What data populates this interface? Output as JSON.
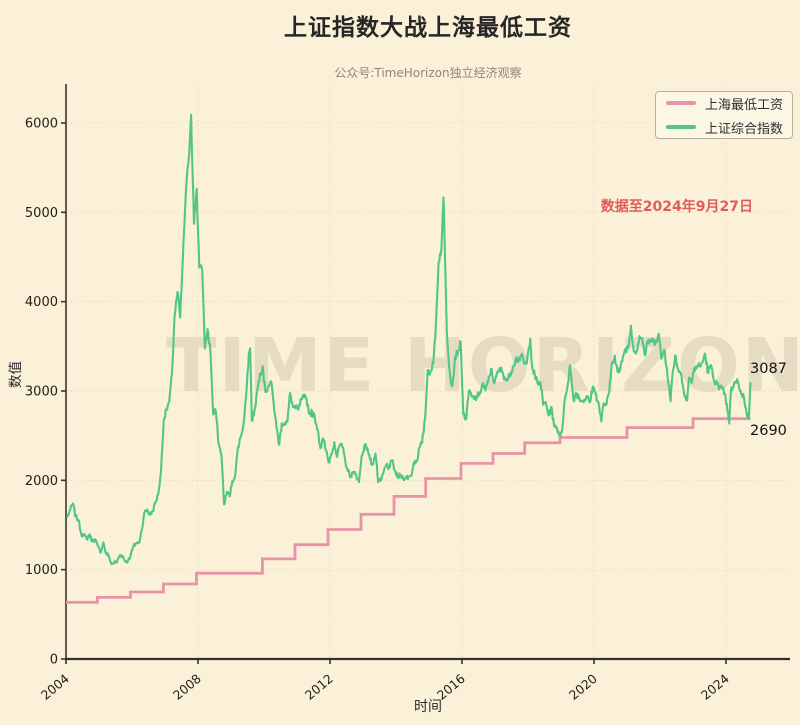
{
  "page": {
    "background": "#faf1d8"
  },
  "header": {
    "title": "上证指数大战上海最低工资",
    "subtitle": "公众号:TimeHorizon独立经济观察"
  },
  "watermark": "TIME HORIZON",
  "annotation": {
    "text": "数据至2024年9月27日",
    "color": "#e05c5c"
  },
  "end_labels": {
    "sse": "3087",
    "wage": "2690"
  },
  "legend": {
    "items": [
      {
        "label": "上海最低工资",
        "color": "#e794a8"
      },
      {
        "label": "上证综合指数",
        "color": "#52c785"
      }
    ]
  },
  "axes": {
    "xlabel": "时间",
    "ylabel": "数值",
    "x_ticks": [
      "2004",
      "2008",
      "2012",
      "2016",
      "2020",
      "2024"
    ],
    "y_ticks": [
      "0",
      "1000",
      "2000",
      "3000",
      "4000",
      "5000",
      "6000"
    ]
  },
  "chart_data": {
    "type": "line",
    "title": "上证指数大战上海最低工资",
    "xlabel": "时间",
    "ylabel": "数值",
    "xlim": [
      2004,
      2025.9
    ],
    "ylim": [
      0,
      6425
    ],
    "grid": "dotted",
    "legend_position": "upper right",
    "last_date": "2024-09-27",
    "series": [
      {
        "name": "上海最低工资",
        "color": "#e794a8",
        "style": "step",
        "final_value": 2690,
        "points": [
          [
            2004.0,
            635
          ],
          [
            2004.95,
            690
          ],
          [
            2005.95,
            750
          ],
          [
            2006.95,
            840
          ],
          [
            2007.95,
            960
          ],
          [
            2009.95,
            1120
          ],
          [
            2010.94,
            1280
          ],
          [
            2011.94,
            1450
          ],
          [
            2012.94,
            1620
          ],
          [
            2013.94,
            1820
          ],
          [
            2014.9,
            2020
          ],
          [
            2015.97,
            2190
          ],
          [
            2016.94,
            2300
          ],
          [
            2017.9,
            2420
          ],
          [
            2018.97,
            2480
          ],
          [
            2021.0,
            2590
          ],
          [
            2023.0,
            2690
          ]
        ],
        "end_x": 2024.74
      },
      {
        "name": "上证综合指数",
        "color": "#52c785",
        "style": "line",
        "final_value": 3087,
        "points": [
          [
            2004.04,
            1590
          ],
          [
            2004.13,
            1675
          ],
          [
            2004.21,
            1741
          ],
          [
            2004.29,
            1595
          ],
          [
            2004.38,
            1555
          ],
          [
            2004.46,
            1400
          ],
          [
            2004.54,
            1386
          ],
          [
            2004.63,
            1342
          ],
          [
            2004.71,
            1396
          ],
          [
            2004.79,
            1320
          ],
          [
            2004.88,
            1340
          ],
          [
            2004.96,
            1266
          ],
          [
            2005.04,
            1191
          ],
          [
            2005.13,
            1306
          ],
          [
            2005.21,
            1181
          ],
          [
            2005.29,
            1159
          ],
          [
            2005.38,
            1060
          ],
          [
            2005.46,
            1081
          ],
          [
            2005.54,
            1083
          ],
          [
            2005.63,
            1162
          ],
          [
            2005.71,
            1155
          ],
          [
            2005.79,
            1092
          ],
          [
            2005.88,
            1099
          ],
          [
            2005.96,
            1161
          ],
          [
            2006.04,
            1258
          ],
          [
            2006.13,
            1299
          ],
          [
            2006.21,
            1298
          ],
          [
            2006.29,
            1440
          ],
          [
            2006.38,
            1641
          ],
          [
            2006.46,
            1672
          ],
          [
            2006.54,
            1612
          ],
          [
            2006.63,
            1658
          ],
          [
            2006.71,
            1752
          ],
          [
            2006.79,
            1837
          ],
          [
            2006.88,
            2099
          ],
          [
            2006.96,
            2675
          ],
          [
            2007.04,
            2786
          ],
          [
            2007.13,
            2881
          ],
          [
            2007.21,
            3183
          ],
          [
            2007.29,
            3841
          ],
          [
            2007.38,
            4109
          ],
          [
            2007.46,
            3820
          ],
          [
            2007.54,
            4471
          ],
          [
            2007.63,
            5218
          ],
          [
            2007.71,
            5552
          ],
          [
            2007.79,
            6092
          ],
          [
            2007.88,
            4872
          ],
          [
            2007.96,
            5262
          ],
          [
            2008.04,
            4383
          ],
          [
            2008.13,
            4348
          ],
          [
            2008.21,
            3473
          ],
          [
            2008.29,
            3693
          ],
          [
            2008.38,
            3433
          ],
          [
            2008.46,
            2736
          ],
          [
            2008.54,
            2776
          ],
          [
            2008.63,
            2397
          ],
          [
            2008.71,
            2294
          ],
          [
            2008.79,
            1729
          ],
          [
            2008.88,
            1871
          ],
          [
            2008.96,
            1821
          ],
          [
            2009.04,
            1991
          ],
          [
            2009.13,
            2063
          ],
          [
            2009.21,
            2373
          ],
          [
            2009.29,
            2477
          ],
          [
            2009.38,
            2632
          ],
          [
            2009.46,
            2959
          ],
          [
            2009.54,
            3412
          ],
          [
            2009.58,
            3478
          ],
          [
            2009.63,
            2668
          ],
          [
            2009.71,
            2779
          ],
          [
            2009.79,
            2995
          ],
          [
            2009.88,
            3195
          ],
          [
            2009.96,
            3277
          ],
          [
            2010.04,
            2989
          ],
          [
            2010.13,
            3052
          ],
          [
            2010.21,
            3109
          ],
          [
            2010.29,
            2871
          ],
          [
            2010.38,
            2592
          ],
          [
            2010.46,
            2398
          ],
          [
            2010.54,
            2638
          ],
          [
            2010.63,
            2639
          ],
          [
            2010.71,
            2656
          ],
          [
            2010.79,
            2979
          ],
          [
            2010.88,
            2820
          ],
          [
            2010.96,
            2808
          ],
          [
            2011.04,
            2790
          ],
          [
            2011.13,
            2905
          ],
          [
            2011.21,
            2928
          ],
          [
            2011.29,
            2911
          ],
          [
            2011.38,
            2743
          ],
          [
            2011.46,
            2762
          ],
          [
            2011.54,
            2701
          ],
          [
            2011.63,
            2567
          ],
          [
            2011.71,
            2359
          ],
          [
            2011.79,
            2468
          ],
          [
            2011.88,
            2333
          ],
          [
            2011.96,
            2199
          ],
          [
            2012.04,
            2293
          ],
          [
            2012.13,
            2428
          ],
          [
            2012.21,
            2262
          ],
          [
            2012.29,
            2396
          ],
          [
            2012.38,
            2372
          ],
          [
            2012.46,
            2225
          ],
          [
            2012.54,
            2103
          ],
          [
            2012.63,
            2047
          ],
          [
            2012.71,
            2086
          ],
          [
            2012.79,
            2068
          ],
          [
            2012.88,
            1980
          ],
          [
            2012.96,
            2269
          ],
          [
            2013.04,
            2385
          ],
          [
            2013.13,
            2365
          ],
          [
            2013.21,
            2237
          ],
          [
            2013.29,
            2177
          ],
          [
            2013.38,
            2301
          ],
          [
            2013.46,
            1979
          ],
          [
            2013.54,
            1994
          ],
          [
            2013.63,
            2098
          ],
          [
            2013.71,
            2175
          ],
          [
            2013.79,
            2141
          ],
          [
            2013.88,
            2220
          ],
          [
            2013.96,
            2116
          ],
          [
            2014.04,
            2033
          ],
          [
            2014.13,
            2056
          ],
          [
            2014.21,
            2033
          ],
          [
            2014.29,
            2026
          ],
          [
            2014.38,
            2039
          ],
          [
            2014.46,
            2048
          ],
          [
            2014.54,
            2201
          ],
          [
            2014.63,
            2217
          ],
          [
            2014.71,
            2364
          ],
          [
            2014.79,
            2420
          ],
          [
            2014.88,
            2683
          ],
          [
            2014.96,
            3235
          ],
          [
            2015.04,
            3210
          ],
          [
            2015.13,
            3310
          ],
          [
            2015.21,
            3748
          ],
          [
            2015.29,
            4442
          ],
          [
            2015.38,
            4612
          ],
          [
            2015.44,
            5166
          ],
          [
            2015.5,
            4277
          ],
          [
            2015.54,
            3664
          ],
          [
            2015.63,
            3206
          ],
          [
            2015.71,
            3053
          ],
          [
            2015.79,
            3383
          ],
          [
            2015.88,
            3445
          ],
          [
            2015.96,
            3539
          ],
          [
            2016.04,
            2738
          ],
          [
            2016.13,
            2688
          ],
          [
            2016.21,
            3004
          ],
          [
            2016.29,
            2938
          ],
          [
            2016.38,
            2917
          ],
          [
            2016.46,
            2930
          ],
          [
            2016.54,
            2979
          ],
          [
            2016.63,
            3085
          ],
          [
            2016.71,
            3005
          ],
          [
            2016.79,
            3100
          ],
          [
            2016.88,
            3250
          ],
          [
            2016.96,
            3104
          ],
          [
            2017.04,
            3159
          ],
          [
            2017.13,
            3242
          ],
          [
            2017.21,
            3223
          ],
          [
            2017.29,
            3155
          ],
          [
            2017.38,
            3117
          ],
          [
            2017.46,
            3192
          ],
          [
            2017.54,
            3273
          ],
          [
            2017.63,
            3361
          ],
          [
            2017.71,
            3349
          ],
          [
            2017.79,
            3393
          ],
          [
            2017.88,
            3317
          ],
          [
            2017.96,
            3307
          ],
          [
            2018.07,
            3587
          ],
          [
            2018.13,
            3259
          ],
          [
            2018.21,
            3169
          ],
          [
            2018.29,
            3082
          ],
          [
            2018.38,
            3095
          ],
          [
            2018.46,
            2847
          ],
          [
            2018.54,
            2876
          ],
          [
            2018.63,
            2725
          ],
          [
            2018.71,
            2821
          ],
          [
            2018.79,
            2603
          ],
          [
            2018.88,
            2588
          ],
          [
            2018.96,
            2494
          ],
          [
            2019.04,
            2585
          ],
          [
            2019.13,
            2941
          ],
          [
            2019.21,
            3091
          ],
          [
            2019.27,
            3288
          ],
          [
            2019.38,
            2899
          ],
          [
            2019.46,
            2979
          ],
          [
            2019.54,
            2933
          ],
          [
            2019.63,
            2886
          ],
          [
            2019.71,
            2905
          ],
          [
            2019.79,
            2929
          ],
          [
            2019.88,
            2872
          ],
          [
            2019.96,
            3050
          ],
          [
            2020.04,
            2977
          ],
          [
            2020.13,
            2880
          ],
          [
            2020.22,
            2660
          ],
          [
            2020.29,
            2860
          ],
          [
            2020.38,
            2852
          ],
          [
            2020.46,
            2985
          ],
          [
            2020.54,
            3310
          ],
          [
            2020.63,
            3396
          ],
          [
            2020.71,
            3218
          ],
          [
            2020.79,
            3225
          ],
          [
            2020.88,
            3392
          ],
          [
            2020.96,
            3473
          ],
          [
            2021.04,
            3483
          ],
          [
            2021.12,
            3731
          ],
          [
            2021.21,
            3442
          ],
          [
            2021.29,
            3447
          ],
          [
            2021.38,
            3615
          ],
          [
            2021.46,
            3591
          ],
          [
            2021.54,
            3397
          ],
          [
            2021.63,
            3544
          ],
          [
            2021.71,
            3568
          ],
          [
            2021.79,
            3547
          ],
          [
            2021.88,
            3564
          ],
          [
            2021.96,
            3640
          ],
          [
            2022.04,
            3361
          ],
          [
            2022.13,
            3462
          ],
          [
            2022.21,
            3252
          ],
          [
            2022.32,
            2886
          ],
          [
            2022.38,
            3186
          ],
          [
            2022.46,
            3399
          ],
          [
            2022.54,
            3253
          ],
          [
            2022.63,
            3202
          ],
          [
            2022.71,
            3024
          ],
          [
            2022.82,
            2893
          ],
          [
            2022.88,
            3151
          ],
          [
            2022.96,
            3089
          ],
          [
            2023.04,
            3255
          ],
          [
            2023.13,
            3280
          ],
          [
            2023.21,
            3273
          ],
          [
            2023.29,
            3323
          ],
          [
            2023.36,
            3419
          ],
          [
            2023.46,
            3202
          ],
          [
            2023.54,
            3291
          ],
          [
            2023.63,
            3120
          ],
          [
            2023.71,
            3110
          ],
          [
            2023.79,
            3019
          ],
          [
            2023.88,
            3030
          ],
          [
            2023.96,
            2975
          ],
          [
            2024.04,
            2789
          ],
          [
            2024.1,
            2635
          ],
          [
            2024.15,
            3015
          ],
          [
            2024.21,
            3041
          ],
          [
            2024.29,
            3105
          ],
          [
            2024.38,
            3087
          ],
          [
            2024.46,
            2967
          ],
          [
            2024.54,
            2938
          ],
          [
            2024.6,
            2810
          ],
          [
            2024.645,
            2704
          ],
          [
            2024.67,
            2748
          ],
          [
            2024.695,
            2690
          ],
          [
            2024.74,
            3087
          ]
        ]
      }
    ]
  }
}
